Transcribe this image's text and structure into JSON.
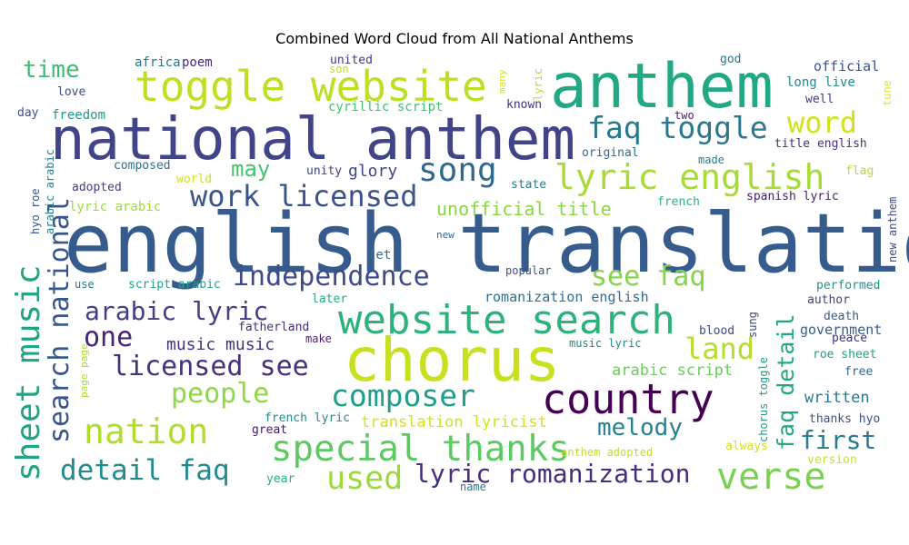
{
  "title": "Combined Word Cloud from All National Anthems",
  "palette": "viridis",
  "words": [
    {
      "text": "english translation",
      "color": "#365c8d"
    },
    {
      "text": "national anthem",
      "color": "#414487"
    },
    {
      "text": "anthem",
      "color": "#22a884"
    },
    {
      "text": "chorus",
      "color": "#c8e020"
    },
    {
      "text": "toggle website",
      "color": "#bddf26"
    },
    {
      "text": "website search",
      "color": "#2db27d"
    },
    {
      "text": "country",
      "color": "#440154"
    },
    {
      "text": "verse",
      "color": "#7ad151"
    },
    {
      "text": "lyric english",
      "color": "#a8db34"
    },
    {
      "text": "special thanks",
      "color": "#5ec962"
    },
    {
      "text": "sheet music",
      "color": "#20a486"
    },
    {
      "text": "nation",
      "color": "#b2dd2d"
    },
    {
      "text": "song",
      "color": "#31688e"
    },
    {
      "text": "work licensed",
      "color": "#3b528b"
    },
    {
      "text": "search national",
      "color": "#39568c"
    },
    {
      "text": "faq toggle",
      "color": "#2a788e"
    },
    {
      "text": "word",
      "color": "#d2e21b"
    },
    {
      "text": "composer",
      "color": "#1f9e89"
    },
    {
      "text": "independence",
      "color": "#3e4a89"
    },
    {
      "text": "licensed see",
      "color": "#46327e"
    },
    {
      "text": "used",
      "color": "#9bd93c"
    },
    {
      "text": "lyric romanization",
      "color": "#472d7b"
    },
    {
      "text": "detail faq",
      "color": "#238a8d"
    },
    {
      "text": "arabic lyric",
      "color": "#433e85"
    },
    {
      "text": "people",
      "color": "#8fd744"
    },
    {
      "text": "faq detail",
      "color": "#22a785"
    },
    {
      "text": "land",
      "color": "#b5de2b"
    },
    {
      "text": "first",
      "color": "#287c8e"
    },
    {
      "text": "see faq",
      "color": "#84d44b"
    },
    {
      "text": "one",
      "color": "#482475"
    },
    {
      "text": "melody",
      "color": "#26828e"
    },
    {
      "text": "time",
      "color": "#3fbc73"
    },
    {
      "text": "may",
      "color": "#4ac16d"
    },
    {
      "text": "unofficial title",
      "color": "#8bd646"
    },
    {
      "text": "translation lyricist",
      "color": "#d5e21a"
    },
    {
      "text": "music music",
      "color": "#46307e"
    },
    {
      "text": "glory",
      "color": "#3f4788"
    },
    {
      "text": "arabic script",
      "color": "#6ccd5a"
    },
    {
      "text": "romanization english",
      "color": "#2f6c8e"
    },
    {
      "text": "written",
      "color": "#2a768e"
    },
    {
      "text": "government",
      "color": "#355f8d"
    },
    {
      "text": "official",
      "color": "#3a548c"
    },
    {
      "text": "long live",
      "color": "#23898e"
    },
    {
      "text": "freedom",
      "color": "#1f988b"
    },
    {
      "text": "lyric arabic",
      "color": "#9fda3a"
    },
    {
      "text": "poem",
      "color": "#472a7a"
    },
    {
      "text": "africa",
      "color": "#2c738e"
    },
    {
      "text": "love",
      "color": "#3e4c8a"
    },
    {
      "text": "day",
      "color": "#3d4d8a"
    },
    {
      "text": "united",
      "color": "#453781"
    },
    {
      "text": "son",
      "color": "#c0df25"
    },
    {
      "text": "cyrillic script",
      "color": "#44bf70"
    },
    {
      "text": "god",
      "color": "#2a788e"
    },
    {
      "text": "well",
      "color": "#443a83"
    },
    {
      "text": "known",
      "color": "#46327e"
    },
    {
      "text": "two",
      "color": "#482173"
    },
    {
      "text": "many",
      "color": "#d8e219"
    },
    {
      "text": "lyric",
      "color": "#b8de29"
    },
    {
      "text": "tune",
      "color": "#e5e419"
    },
    {
      "text": "composed",
      "color": "#2c718e"
    },
    {
      "text": "world",
      "color": "#d0e11c"
    },
    {
      "text": "unity",
      "color": "#404387"
    },
    {
      "text": "state",
      "color": "#277f8e"
    },
    {
      "text": "adopted",
      "color": "#433d84"
    },
    {
      "text": "original",
      "color": "#306a8e"
    },
    {
      "text": "made",
      "color": "#26818e"
    },
    {
      "text": "title english",
      "color": "#472f7d"
    },
    {
      "text": "flag",
      "color": "#b0dd2f"
    },
    {
      "text": "spanish lyric",
      "color": "#481b6d"
    },
    {
      "text": "french",
      "color": "#2eb37c"
    },
    {
      "text": "let",
      "color": "#2d708e"
    },
    {
      "text": "new",
      "color": "#2f6b8e"
    },
    {
      "text": "popular",
      "color": "#3b518b"
    },
    {
      "text": "use",
      "color": "#2a778e"
    },
    {
      "text": "script arabic",
      "color": "#1fa287"
    },
    {
      "text": "later",
      "color": "#25ab82"
    },
    {
      "text": "performed",
      "color": "#20938c"
    },
    {
      "text": "author",
      "color": "#404588"
    },
    {
      "text": "death",
      "color": "#35608d"
    },
    {
      "text": "peace",
      "color": "#46307e"
    },
    {
      "text": "fatherland",
      "color": "#472c7a"
    },
    {
      "text": "make",
      "color": "#481f70"
    },
    {
      "text": "blood",
      "color": "#3f4889"
    },
    {
      "text": "sung",
      "color": "#404688"
    },
    {
      "text": "music lyric",
      "color": "#25858e"
    },
    {
      "text": "roe sheet",
      "color": "#1fa088"
    },
    {
      "text": "free",
      "color": "#31678e"
    },
    {
      "text": "chorus toggle",
      "color": "#1e9c89"
    },
    {
      "text": "thanks hyo",
      "color": "#3b528b"
    },
    {
      "text": "always",
      "color": "#d2e21b"
    },
    {
      "text": "version",
      "color": "#cae11f"
    },
    {
      "text": "anthem adopted",
      "color": "#c5e021"
    },
    {
      "text": "french lyric",
      "color": "#238a8d"
    },
    {
      "text": "great",
      "color": "#481769"
    },
    {
      "text": "year",
      "color": "#27ad81"
    },
    {
      "text": "name",
      "color": "#2b758e"
    },
    {
      "text": "hyo roe",
      "color": "#3b528b"
    },
    {
      "text": "arabic arabic",
      "color": "#287d8e"
    },
    {
      "text": "page page",
      "color": "#addc30"
    },
    {
      "text": "new anthem",
      "color": "#3e4a89"
    }
  ]
}
